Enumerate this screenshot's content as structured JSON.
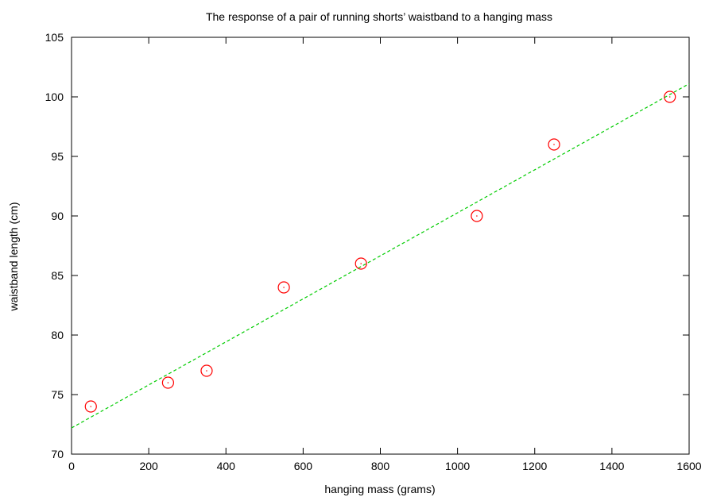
{
  "chart_data": {
    "type": "scatter",
    "title": "The response of a pair of running shorts’ waistband to a hanging mass",
    "xlabel": "hanging mass (grams)",
    "ylabel": "waistband length (cm)",
    "xlim": [
      0,
      1600
    ],
    "ylim": [
      70,
      105
    ],
    "xticks": [
      0,
      200,
      400,
      600,
      800,
      1000,
      1200,
      1400,
      1600
    ],
    "yticks": [
      70,
      75,
      80,
      85,
      90,
      95,
      100,
      105
    ],
    "xtick_labels": [
      "0",
      "200",
      "400",
      "600",
      "800",
      "1000",
      "1200",
      "1400",
      "1600"
    ],
    "ytick_labels": [
      "70",
      "75",
      "80",
      "85",
      "90",
      "95",
      "100",
      "105"
    ],
    "grid": false,
    "legend": "none",
    "series": [
      {
        "type": "scatter",
        "marker": "circle",
        "color": "#ff0000",
        "x": [
          50,
          250,
          350,
          550,
          750,
          1050,
          1250,
          1550
        ],
        "y": [
          74,
          76,
          77,
          84,
          86,
          90,
          96,
          100
        ]
      },
      {
        "type": "line",
        "style": "dashed",
        "color": "#00cc00",
        "x": [
          0,
          1600
        ],
        "y": [
          72.2,
          101.1
        ]
      }
    ]
  }
}
